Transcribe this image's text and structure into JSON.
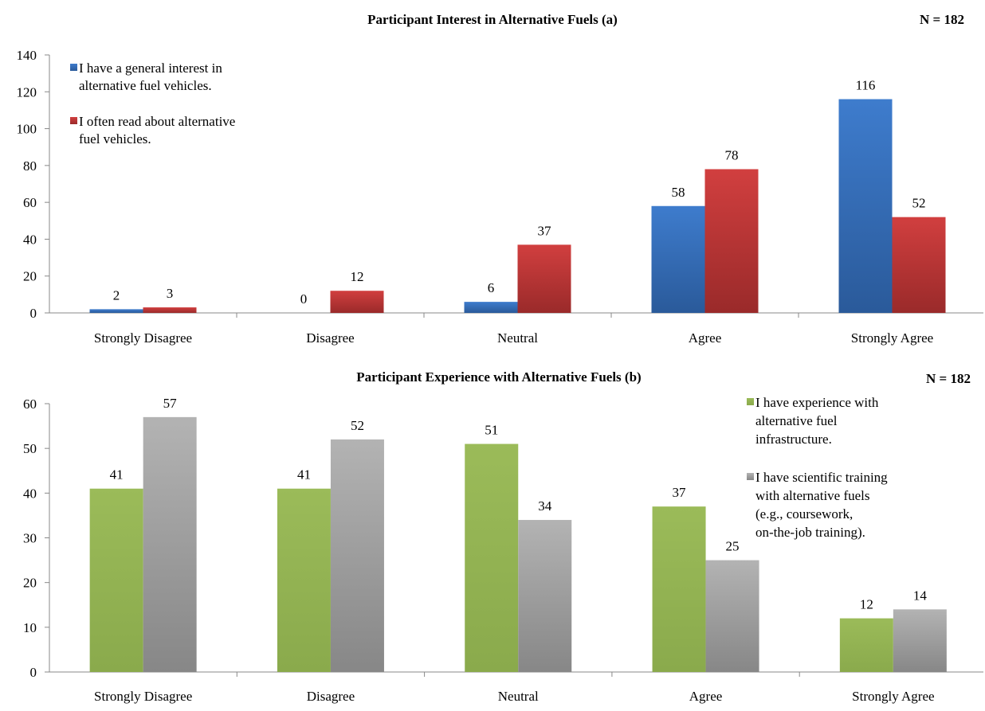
{
  "chart_data": [
    {
      "type": "bar",
      "title": "Participant Interest in Alternative Fuels (a)",
      "note": "N = 182",
      "categories": [
        "Strongly Disagree",
        "Disagree",
        "Neutral",
        "Agree",
        "Strongly Agree"
      ],
      "series": [
        {
          "name": "I have a general interest in alternative fuel vehicles.",
          "values": [
            2,
            0,
            6,
            58,
            116
          ],
          "color": "#3a72c1"
        },
        {
          "name": "I often read about alternative fuel vehicles.",
          "values": [
            3,
            12,
            37,
            78,
            52
          ],
          "color": "#c23b3b"
        }
      ],
      "ylim": [
        0,
        140
      ],
      "yticks": [
        0,
        20,
        40,
        60,
        80,
        100,
        120,
        140
      ],
      "legend": "top-left",
      "grid": false
    },
    {
      "type": "bar",
      "title": "Participant Experience with Alternative Fuels (b)",
      "note": "N = 182",
      "categories": [
        "Strongly Disagree",
        "Disagree",
        "Neutral",
        "Agree",
        "Strongly Agree"
      ],
      "series": [
        {
          "name": "I have experience with alternative fuel infrastructure.",
          "values": [
            41,
            41,
            51,
            37,
            12
          ],
          "color": "#9bbb59"
        },
        {
          "name": "I have scientific training with alternative fuels (e.g., coursework, on-the-job training).",
          "values": [
            57,
            52,
            34,
            25,
            14
          ],
          "color": "#a5a5a5"
        }
      ],
      "ylim": [
        0,
        60
      ],
      "yticks": [
        0,
        10,
        20,
        30,
        40,
        50,
        60
      ],
      "legend": "right",
      "grid": false
    }
  ]
}
